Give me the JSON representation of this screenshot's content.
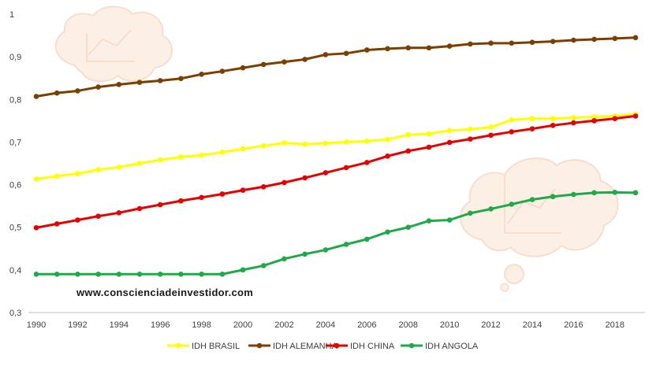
{
  "chart_data": {
    "type": "line",
    "title": "",
    "xlabel": "",
    "ylabel": "",
    "x": [
      1990,
      1991,
      1992,
      1993,
      1994,
      1995,
      1996,
      1997,
      1998,
      1999,
      2000,
      2001,
      2002,
      2003,
      2004,
      2005,
      2006,
      2007,
      2008,
      2009,
      2010,
      2011,
      2012,
      2013,
      2014,
      2015,
      2016,
      2017,
      2018,
      2019
    ],
    "xlim": [
      1990,
      2019
    ],
    "ylim": [
      0.3,
      1
    ],
    "x_ticks": [
      1990,
      1992,
      1994,
      1996,
      1998,
      2000,
      2002,
      2004,
      2006,
      2008,
      2010,
      2012,
      2014,
      2016,
      2018
    ],
    "y_ticks": [
      0.3,
      0.4,
      0.5,
      0.6,
      0.7,
      0.8,
      0.9,
      1
    ],
    "y_tick_labels": [
      "0,3",
      "0,4",
      "0,5",
      "0,6",
      "0,7",
      "0,8",
      "0,9",
      "1"
    ],
    "grid": false,
    "legend_position": "bottom",
    "series": [
      {
        "name": "IDH BRASIL",
        "color": "#ffff00",
        "values": [
          0.613,
          0.62,
          0.626,
          0.635,
          0.641,
          0.65,
          0.658,
          0.665,
          0.669,
          0.676,
          0.684,
          0.691,
          0.698,
          0.695,
          0.697,
          0.7,
          0.702,
          0.706,
          0.717,
          0.719,
          0.727,
          0.73,
          0.735,
          0.752,
          0.755,
          0.755,
          0.757,
          0.759,
          0.761,
          0.765
        ]
      },
      {
        "name": "IDH ALEMANHA",
        "color": "#7b3f00",
        "values": [
          0.807,
          0.815,
          0.82,
          0.829,
          0.835,
          0.84,
          0.844,
          0.849,
          0.859,
          0.866,
          0.874,
          0.882,
          0.888,
          0.894,
          0.905,
          0.908,
          0.916,
          0.919,
          0.921,
          0.921,
          0.925,
          0.93,
          0.932,
          0.932,
          0.934,
          0.936,
          0.939,
          0.941,
          0.943,
          0.945
        ]
      },
      {
        "name": "IDH CHINA",
        "color": "#e60000",
        "values": [
          0.499,
          0.508,
          0.517,
          0.526,
          0.534,
          0.544,
          0.553,
          0.562,
          0.57,
          0.578,
          0.587,
          0.595,
          0.605,
          0.616,
          0.628,
          0.64,
          0.652,
          0.667,
          0.679,
          0.688,
          0.699,
          0.707,
          0.716,
          0.724,
          0.731,
          0.739,
          0.745,
          0.75,
          0.755,
          0.761
        ]
      },
      {
        "name": "IDH ANGOLA",
        "color": "#1faa4a",
        "values": [
          0.39,
          0.39,
          0.39,
          0.39,
          0.39,
          0.39,
          0.39,
          0.39,
          0.39,
          0.39,
          0.4,
          0.41,
          0.426,
          0.437,
          0.447,
          0.46,
          0.472,
          0.489,
          0.5,
          0.515,
          0.517,
          0.533,
          0.543,
          0.554,
          0.565,
          0.572,
          0.577,
          0.581,
          0.582,
          0.581
        ]
      }
    ]
  },
  "watermark_text": "www.conscienciadeinvestidor.com"
}
